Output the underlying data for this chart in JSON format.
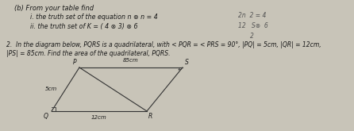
{
  "bg_color": "#c8c4b8",
  "text_color": "#1a1a1a",
  "title_b": "(b) From your table find",
  "line_i": "i. the truth set of the equation n ⊗ n = 4",
  "line_ii": "ii. the truth set of K = ( 4 ⊗ 3) ⊗ 6",
  "handwritten_i": "2n  2 = 4",
  "handwritten_ii": "12   S⊗  6",
  "handwritten_iii": "2",
  "q2_line1": "2.  In the diagram below, PQRS is a quadrilateral, with < PQR = < PRS = 90°, |PQ| = 5cm, |QR| = 12cm,",
  "q2_line2": "|PS| = 85cm. Find the area of the quadrilateral, PQRS.",
  "diagram_P": [
    0.145,
    0.78
  ],
  "diagram_Q": [
    0.075,
    0.3
  ],
  "diagram_R": [
    0.305,
    0.3
  ],
  "diagram_S": [
    0.415,
    0.78
  ],
  "font_main": 6.0,
  "font_small": 5.5
}
